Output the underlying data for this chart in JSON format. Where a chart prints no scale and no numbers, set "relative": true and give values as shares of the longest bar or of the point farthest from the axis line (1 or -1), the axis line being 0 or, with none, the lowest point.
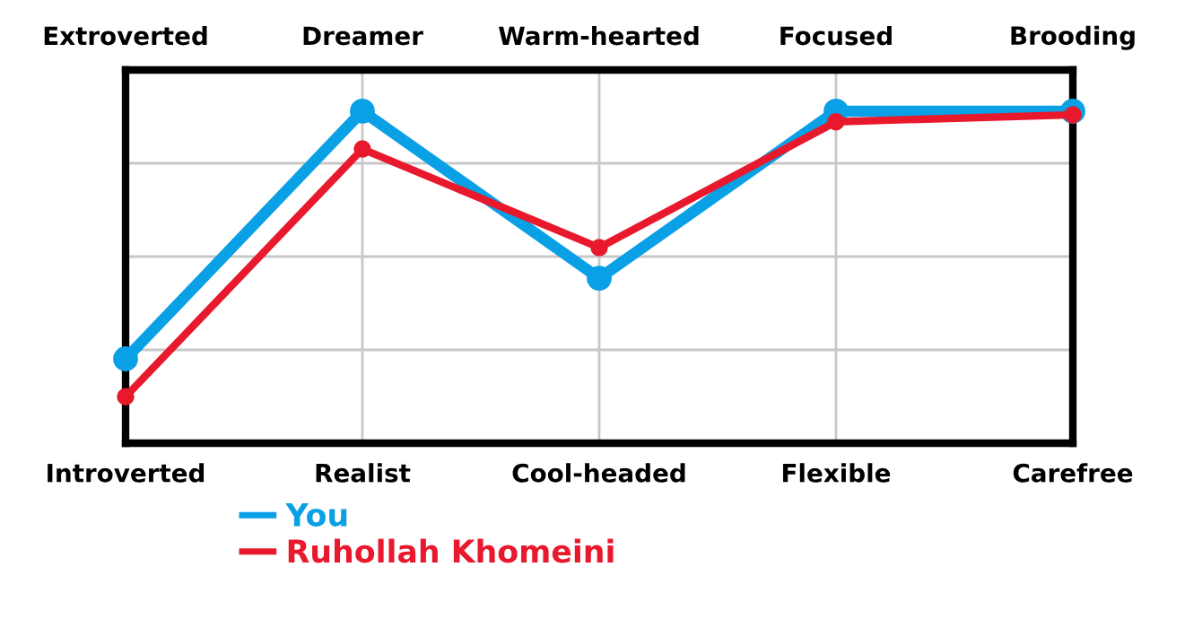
{
  "chart_data": {
    "type": "line",
    "relative": true,
    "categories": [
      "Introverted",
      "Realist",
      "Cool-headed",
      "Flexible",
      "Carefree"
    ],
    "annotations": [
      "Extroverted",
      "Dreamer",
      "Warm-hearted",
      "Focused",
      "Brooding"
    ],
    "series": [
      {
        "name": "You",
        "color": "#0aa0e6",
        "values": [
          0.254,
          1.0,
          0.497,
          1.0,
          1.0
        ]
      },
      {
        "name": "Ruhollah Khomeini",
        "color": "#e8192c",
        "values": [
          0.14,
          0.886,
          0.589,
          0.968,
          0.989
        ]
      }
    ],
    "grid": true,
    "legend": "bottom",
    "marker": "circle",
    "line_style": "solid"
  }
}
